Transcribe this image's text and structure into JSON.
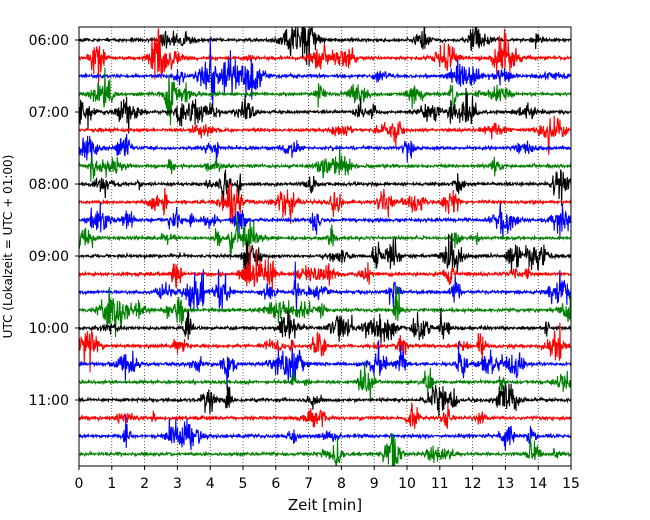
{
  "chart_data": {
    "type": "line",
    "title": "",
    "xlabel": "Zeit  [min]",
    "ylabel": "UTC (Lokalzeit = UTC + 01:00)",
    "xlim": [
      0,
      15
    ],
    "x_ticks": [
      0,
      1,
      2,
      3,
      4,
      5,
      6,
      7,
      8,
      9,
      10,
      11,
      12,
      13,
      14,
      15
    ],
    "y_tick_labels": [
      "06:00",
      "07:00",
      "08:00",
      "09:00",
      "10:00",
      "11:00"
    ],
    "grid": "vertical dotted at each minute",
    "trace_colors_cycle": [
      "#000000",
      "#ff0000",
      "#0000ff",
      "#008000"
    ],
    "trace_start_times": [
      "06:00",
      "06:15",
      "06:30",
      "06:45",
      "07:00",
      "07:15",
      "07:30",
      "07:45",
      "08:00",
      "08:15",
      "08:30",
      "08:45",
      "09:00",
      "09:15",
      "09:30",
      "09:45",
      "10:00",
      "10:15",
      "10:30",
      "10:45",
      "11:00",
      "11:15",
      "11:30",
      "11:45"
    ]
  }
}
